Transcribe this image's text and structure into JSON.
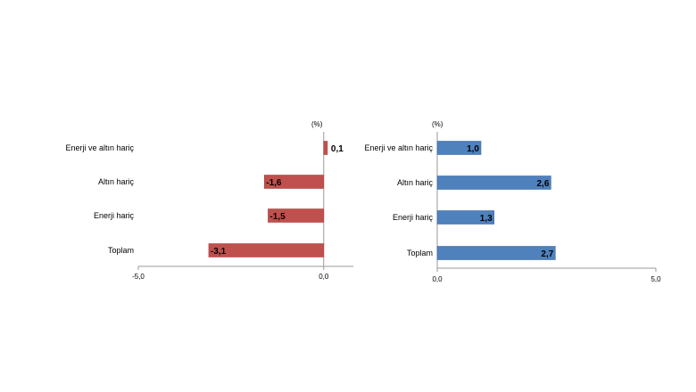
{
  "colors": {
    "left_bar": "#c0504d",
    "left_bar_edge": "#a94441",
    "right_bar": "#4f81bd",
    "right_bar_edge": "#3b6aa0",
    "axis": "#9a9a9a",
    "background": "#ffffff"
  },
  "chart_data": [
    {
      "type": "bar",
      "orientation": "horizontal",
      "unit": "(%)",
      "categories": [
        "Enerji ve altın hariç",
        "Altın hariç",
        "Enerji hariç",
        "Toplam"
      ],
      "values": [
        0.1,
        -1.6,
        -1.5,
        -3.1
      ],
      "value_labels": [
        "0,1",
        "-1,6",
        "-1,5",
        "-3,1"
      ],
      "xlim": [
        -5.0,
        0.8
      ],
      "ticks": [
        -5.0,
        0.0
      ],
      "tick_labels": [
        "-5,0",
        "0,0"
      ],
      "grid": false,
      "legend": "none",
      "color": "#c0504d"
    },
    {
      "type": "bar",
      "orientation": "horizontal",
      "unit": "(%)",
      "categories": [
        "Enerji ve altın hariç",
        "Altın hariç",
        "Enerji hariç",
        "Toplam"
      ],
      "values": [
        1.0,
        2.6,
        1.3,
        2.7
      ],
      "value_labels": [
        "1,0",
        "2,6",
        "1,3",
        "2,7"
      ],
      "xlim": [
        0.0,
        5.0
      ],
      "ticks": [
        0.0,
        5.0
      ],
      "tick_labels": [
        "0,0",
        "5,0"
      ],
      "grid": false,
      "legend": "none",
      "color": "#4f81bd"
    }
  ]
}
